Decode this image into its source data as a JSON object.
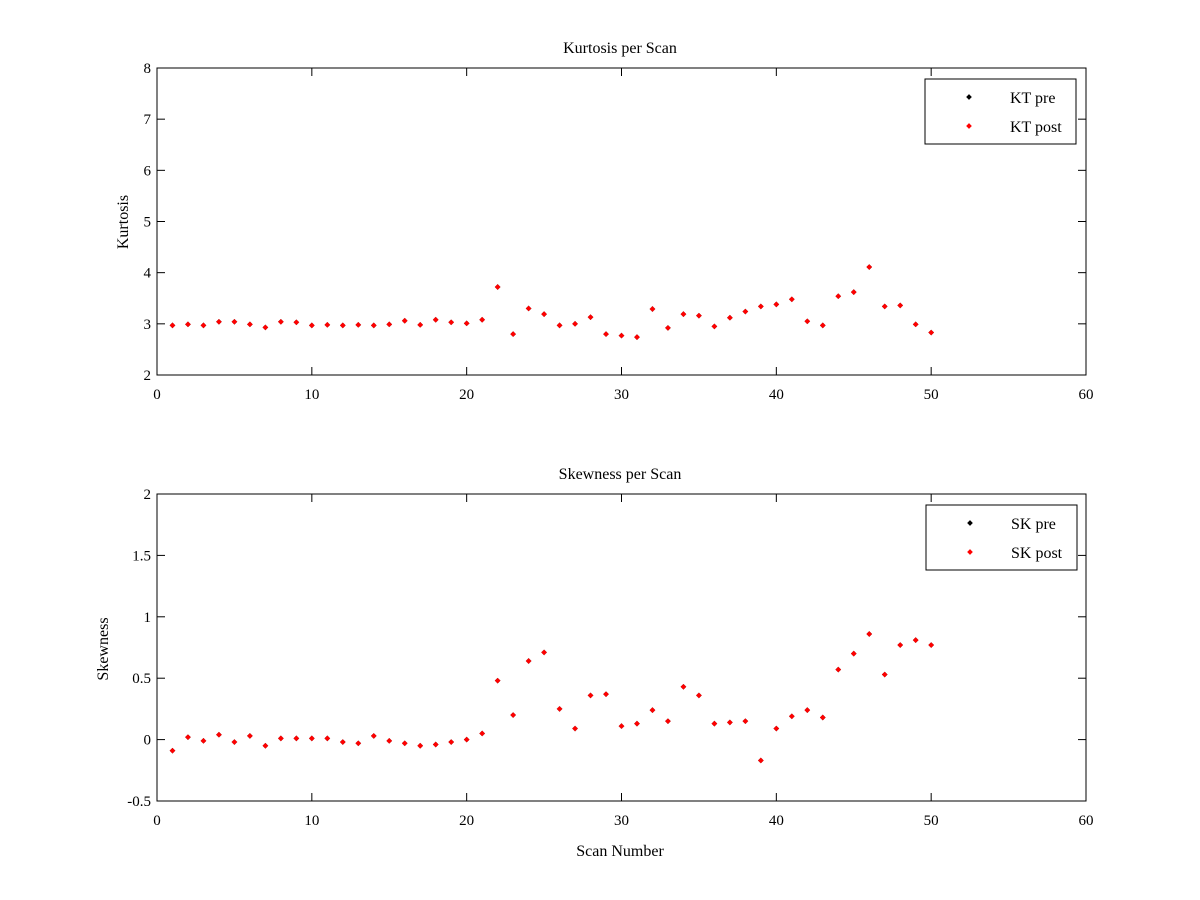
{
  "chart_data": [
    {
      "type": "scatter",
      "title": "Kurtosis per Scan",
      "xlabel": "",
      "ylabel": "Kurtosis",
      "xlim": [
        0,
        60
      ],
      "ylim": [
        2,
        8
      ],
      "xticks": [
        0,
        10,
        20,
        30,
        40,
        50,
        60
      ],
      "yticks": [
        2,
        3,
        4,
        5,
        6,
        7,
        8
      ],
      "legend_position": "top-right",
      "series": [
        {
          "name": "KT pre",
          "color": "#000000",
          "x": [
            1,
            2,
            3,
            4,
            5,
            6,
            7,
            8,
            9,
            10,
            11,
            12,
            13,
            14,
            15,
            16,
            17,
            18,
            19,
            20,
            21,
            22,
            23,
            24,
            25,
            26,
            27,
            28,
            29,
            30,
            31,
            32,
            33,
            34,
            35,
            36,
            37,
            38,
            39,
            40,
            41,
            42,
            43,
            44,
            45,
            46,
            47,
            48,
            49,
            50
          ],
          "y": [
            2.97,
            2.99,
            2.97,
            3.04,
            3.04,
            2.99,
            2.93,
            3.04,
            3.03,
            2.97,
            2.98,
            2.97,
            2.98,
            2.97,
            2.99,
            3.06,
            2.98,
            3.08,
            3.03,
            3.01,
            3.08,
            3.72,
            2.8,
            3.3,
            3.19,
            2.97,
            3.0,
            3.13,
            2.8,
            2.77,
            2.74,
            3.29,
            2.92,
            3.19,
            3.16,
            2.95,
            3.12,
            3.24,
            3.34,
            3.38,
            3.48,
            3.05,
            2.97,
            3.54,
            3.62,
            4.11,
            3.34,
            3.36,
            2.99,
            2.83
          ]
        },
        {
          "name": "KT post",
          "color": "#ff0000",
          "x": [
            1,
            2,
            3,
            4,
            5,
            6,
            7,
            8,
            9,
            10,
            11,
            12,
            13,
            14,
            15,
            16,
            17,
            18,
            19,
            20,
            21,
            22,
            23,
            24,
            25,
            26,
            27,
            28,
            29,
            30,
            31,
            32,
            33,
            34,
            35,
            36,
            37,
            38,
            39,
            40,
            41,
            42,
            43,
            44,
            45,
            46,
            47,
            48,
            49,
            50
          ],
          "y": [
            2.97,
            2.99,
            2.97,
            3.04,
            3.04,
            2.99,
            2.93,
            3.04,
            3.03,
            2.97,
            2.98,
            2.97,
            2.98,
            2.97,
            2.99,
            3.06,
            2.98,
            3.08,
            3.03,
            3.01,
            3.08,
            3.72,
            2.8,
            3.3,
            3.19,
            2.97,
            3.0,
            3.13,
            2.8,
            2.77,
            2.74,
            3.29,
            2.92,
            3.19,
            3.16,
            2.95,
            3.12,
            3.24,
            3.34,
            3.38,
            3.48,
            3.05,
            2.97,
            3.54,
            3.62,
            4.11,
            3.34,
            3.36,
            2.99,
            2.83
          ]
        }
      ]
    },
    {
      "type": "scatter",
      "title": "Skewness per Scan",
      "xlabel": "Scan Number",
      "ylabel": "Skewness",
      "xlim": [
        0,
        60
      ],
      "ylim": [
        -0.5,
        2
      ],
      "xticks": [
        0,
        10,
        20,
        30,
        40,
        50,
        60
      ],
      "yticks": [
        -0.5,
        0,
        0.5,
        1,
        1.5,
        2
      ],
      "legend_position": "top-right",
      "series": [
        {
          "name": "SK pre",
          "color": "#000000",
          "x": [
            1,
            2,
            3,
            4,
            5,
            6,
            7,
            8,
            9,
            10,
            11,
            12,
            13,
            14,
            15,
            16,
            17,
            18,
            19,
            20,
            21,
            22,
            23,
            24,
            25,
            26,
            27,
            28,
            29,
            30,
            31,
            32,
            33,
            34,
            35,
            36,
            37,
            38,
            39,
            40,
            41,
            42,
            43,
            44,
            45,
            46,
            47,
            48,
            49,
            50
          ],
          "y": [
            -0.09,
            0.02,
            -0.01,
            0.04,
            -0.02,
            0.03,
            -0.05,
            0.01,
            0.01,
            0.01,
            0.01,
            -0.02,
            -0.03,
            0.03,
            -0.01,
            -0.03,
            -0.05,
            -0.04,
            -0.02,
            0.0,
            0.05,
            0.48,
            0.2,
            0.64,
            0.71,
            0.25,
            0.09,
            0.36,
            0.37,
            0.11,
            0.13,
            0.24,
            0.15,
            0.43,
            0.36,
            0.13,
            0.14,
            0.15,
            -0.17,
            0.09,
            0.19,
            0.24,
            0.18,
            0.57,
            0.7,
            0.86,
            0.53,
            0.77,
            0.81,
            0.77
          ]
        },
        {
          "name": "SK post",
          "color": "#ff0000",
          "x": [
            1,
            2,
            3,
            4,
            5,
            6,
            7,
            8,
            9,
            10,
            11,
            12,
            13,
            14,
            15,
            16,
            17,
            18,
            19,
            20,
            21,
            22,
            23,
            24,
            25,
            26,
            27,
            28,
            29,
            30,
            31,
            32,
            33,
            34,
            35,
            36,
            37,
            38,
            39,
            40,
            41,
            42,
            43,
            44,
            45,
            46,
            47,
            48,
            49,
            50
          ],
          "y": [
            -0.09,
            0.02,
            -0.01,
            0.04,
            -0.02,
            0.03,
            -0.05,
            0.01,
            0.01,
            0.01,
            0.01,
            -0.02,
            -0.03,
            0.03,
            -0.01,
            -0.03,
            -0.05,
            -0.04,
            -0.02,
            0.0,
            0.05,
            0.48,
            0.2,
            0.64,
            0.71,
            0.25,
            0.09,
            0.36,
            0.37,
            0.11,
            0.13,
            0.24,
            0.15,
            0.43,
            0.36,
            0.13,
            0.14,
            0.15,
            -0.17,
            0.09,
            0.19,
            0.24,
            0.18,
            0.57,
            0.7,
            0.86,
            0.53,
            0.77,
            0.81,
            0.77
          ]
        }
      ]
    }
  ]
}
